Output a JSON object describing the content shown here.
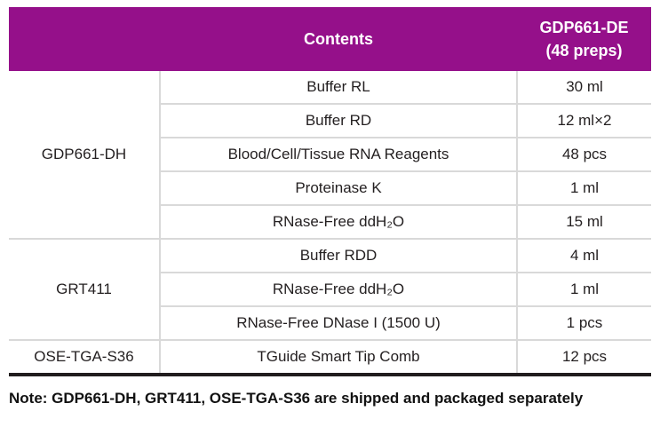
{
  "colors": {
    "header_background": "#95108a",
    "header_text": "#ffffff",
    "grid_line": "#d9d9d9",
    "table_bottom_rule": "#211d1e",
    "body_text": "#231f20"
  },
  "table": {
    "header": {
      "contents": "Contents",
      "kit_line1": "GDP661-DE",
      "kit_line2": "(48 preps)"
    },
    "sections": [
      {
        "id": "GDP661-DH",
        "rows": [
          {
            "contents": "Buffer RL",
            "qty": "30 ml"
          },
          {
            "contents": "Buffer RD",
            "qty": "12 ml×2"
          },
          {
            "contents": "Blood/Cell/Tissue RNA Reagents",
            "qty": "48 pcs"
          },
          {
            "contents": "Proteinase K",
            "qty": "1 ml"
          },
          {
            "contents": "RNase-Free ddH₂O",
            "qty": "15 ml"
          }
        ]
      },
      {
        "id": "GRT411",
        "rows": [
          {
            "contents": "Buffer RDD",
            "qty": "4 ml"
          },
          {
            "contents": "RNase-Free ddH₂O",
            "qty": "1 ml"
          },
          {
            "contents": "RNase-Free DNase I (1500 U)",
            "qty": "1 pcs"
          }
        ]
      },
      {
        "id": "OSE-TGA-S36",
        "rows": [
          {
            "contents": "TGuide Smart Tip Comb",
            "qty": "12 pcs"
          }
        ]
      }
    ]
  },
  "note": "Note: GDP661-DH, GRT411, OSE-TGA-S36 are shipped and packaged separately"
}
